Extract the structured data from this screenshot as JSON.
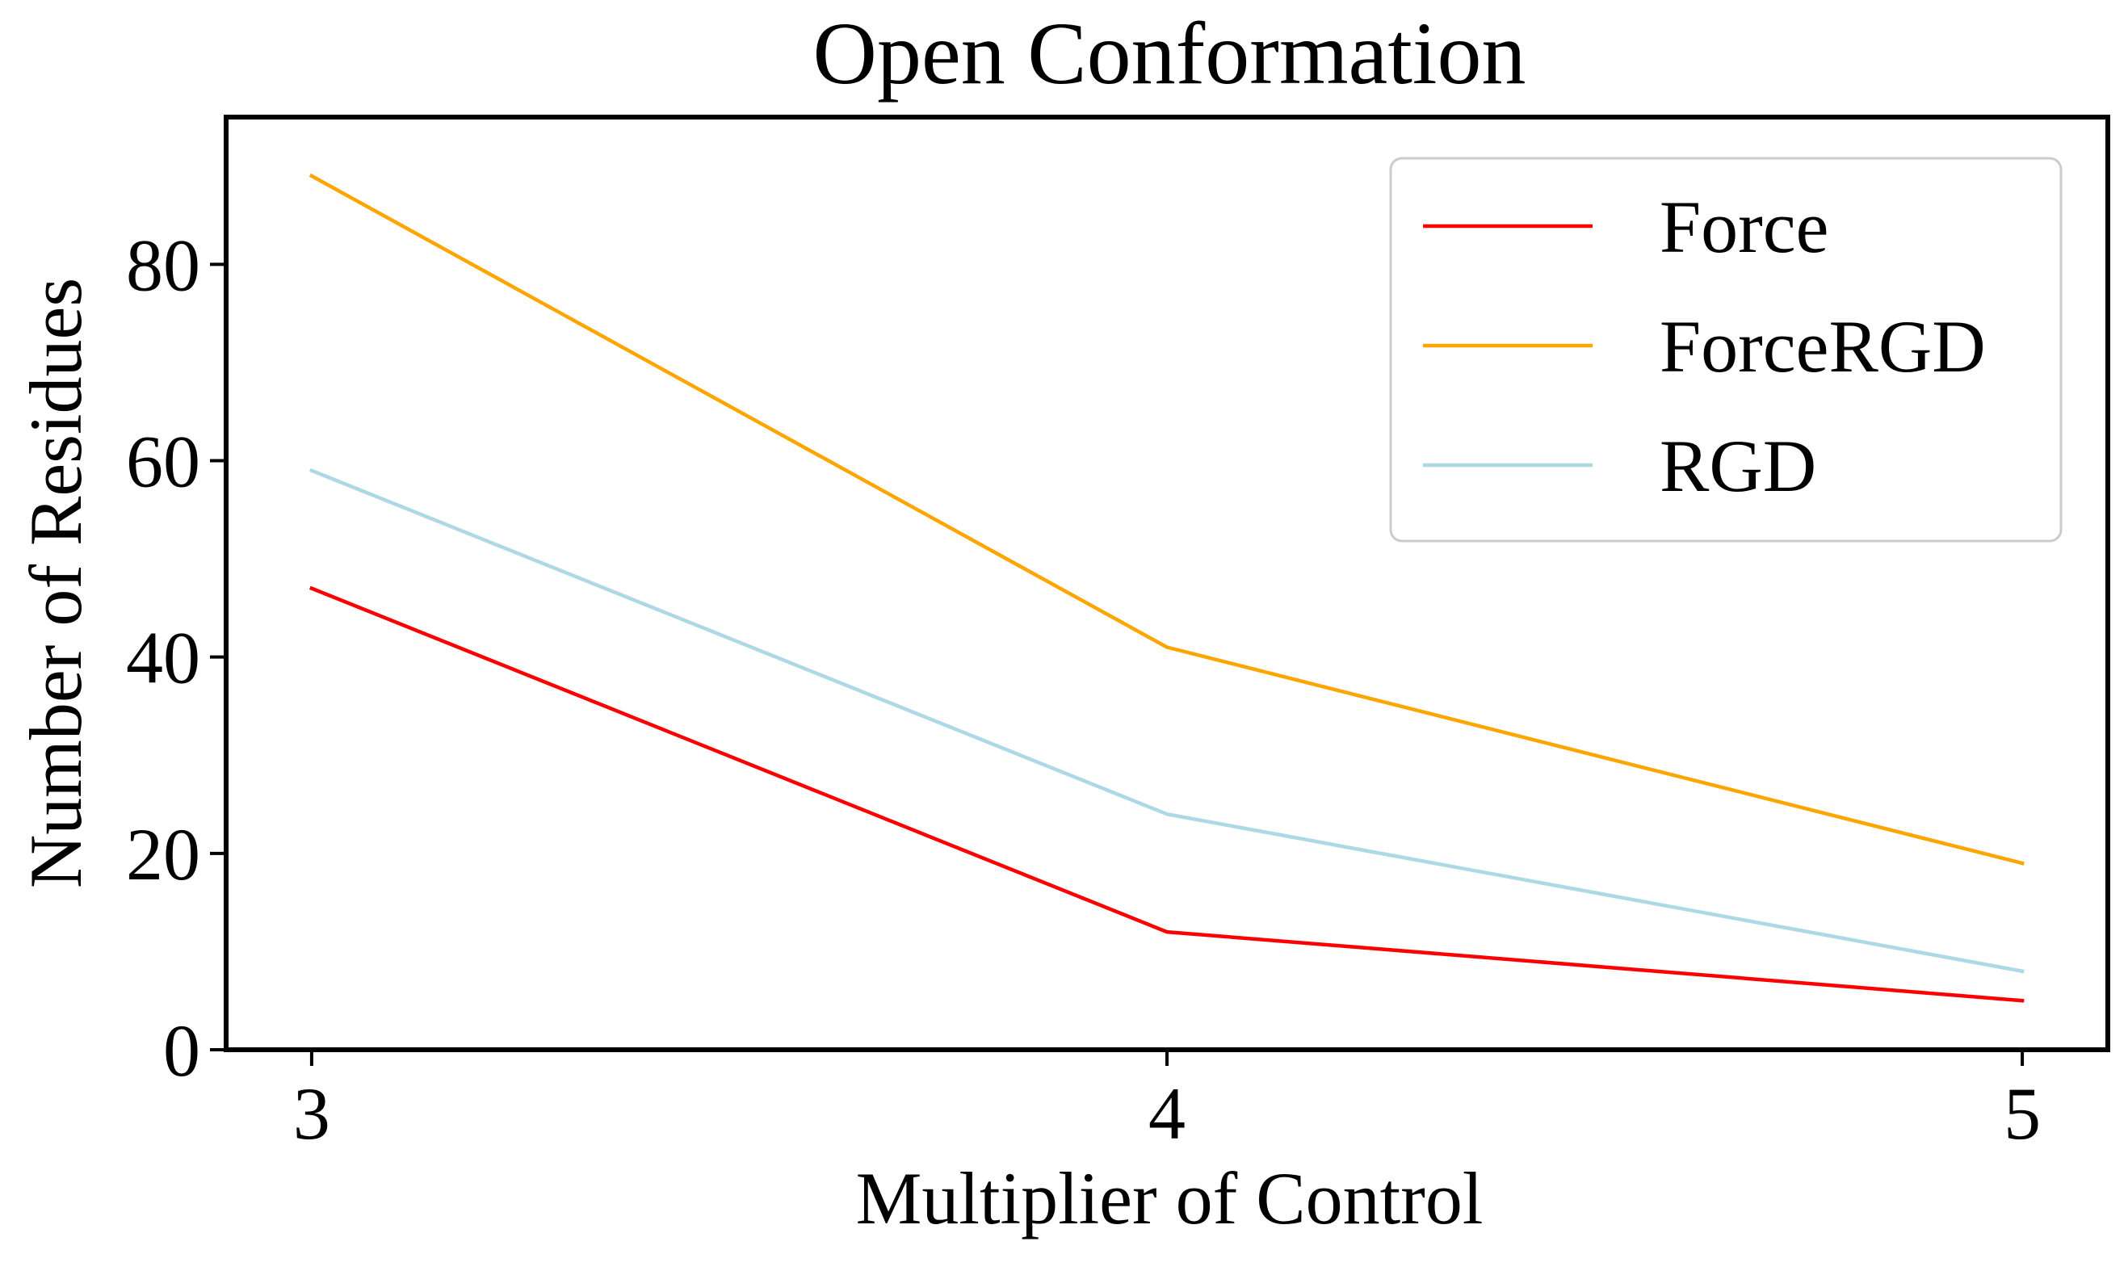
{
  "chart_data": {
    "type": "line",
    "title": "Open Conformation",
    "xlabel": "Multiplier of Control",
    "ylabel": "Number of Residues",
    "x": [
      3,
      4,
      5
    ],
    "xticks": [
      "3",
      "4",
      "5"
    ],
    "yticks": [
      "0",
      "20",
      "40",
      "60",
      "80"
    ],
    "xlim": [
      2.9,
      5.1
    ],
    "ylim": [
      0,
      95
    ],
    "grid": false,
    "legend_position": "top-right",
    "series": [
      {
        "name": "Force",
        "color": "#ff0000",
        "values": [
          47,
          12,
          5
        ]
      },
      {
        "name": "ForceRGD",
        "color": "#ffa500",
        "values": [
          89,
          41,
          19
        ]
      },
      {
        "name": "RGD",
        "color": "#add8e6",
        "values": [
          59,
          24,
          8
        ]
      }
    ]
  }
}
